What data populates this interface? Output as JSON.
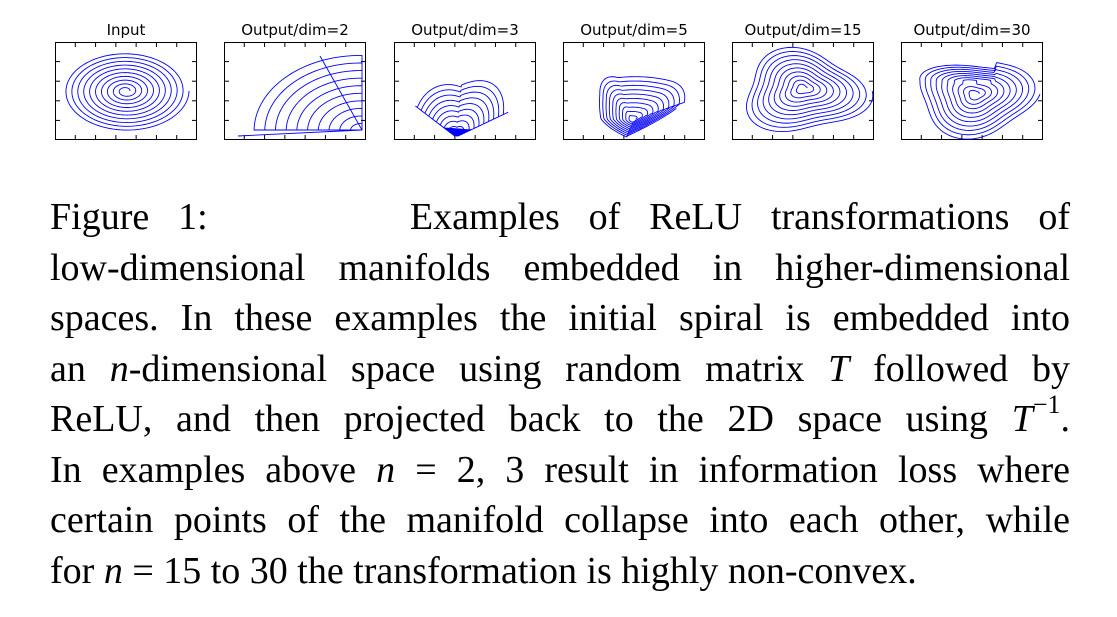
{
  "panels": [
    {
      "title": "Input",
      "kind": "input"
    },
    {
      "title": "Output/dim=2",
      "kind": "dim2"
    },
    {
      "title": "Output/dim=3",
      "kind": "dim3"
    },
    {
      "title": "Output/dim=5",
      "kind": "dim5"
    },
    {
      "title": "Output/dim=15",
      "kind": "dim15"
    },
    {
      "title": "Output/dim=30",
      "kind": "dim30"
    }
  ],
  "line_color": "#0000ff",
  "caption": {
    "label": "Figure 1:",
    "l1": "Examples of ReLU transformations of",
    "l2": "low-dimensional manifolds embedded in higher-dimensional",
    "l3": "spaces.  In these examples the initial spiral is embedded into",
    "l4a": "an ",
    "l4n": "n",
    "l4b": "-dimensional space using random matrix ",
    "l4T": "T",
    "l4c": " followed by",
    "l5a": "ReLU, and then projected back to the 2D space using ",
    "l5T": "T",
    "l5sup": "−1",
    "l5b": ".",
    "l6a": "In examples above ",
    "l6n": "n",
    "l6b": " = 2, 3 result in information loss where",
    "l7": "certain points of the manifold collapse into each other, while",
    "l8a": "for ",
    "l8n": "n",
    "l8b": " = 15 to 30 the transformation is highly non-convex."
  }
}
